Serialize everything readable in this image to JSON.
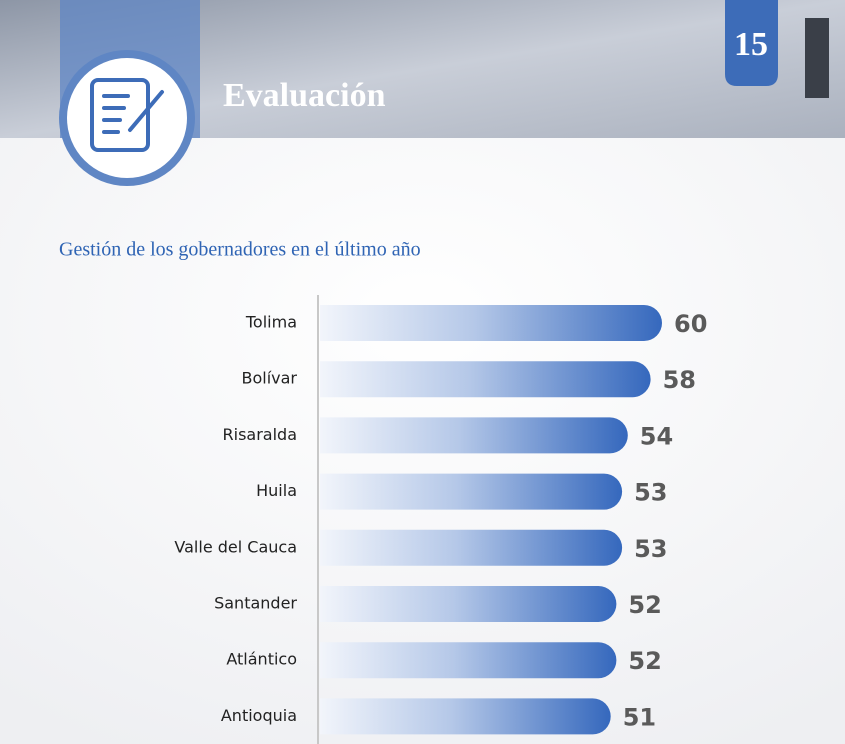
{
  "header": {
    "title": "Evaluación",
    "page_number": "15"
  },
  "chart_data": {
    "type": "bar",
    "orientation": "horizontal",
    "title": "Gestión de los gobernadores en el último año",
    "categories": [
      "Tolima",
      "Bolívar",
      "Risaralda",
      "Huila",
      "Valle del Cauca",
      "Santander",
      "Atlántico",
      "Antioquia"
    ],
    "values": [
      60,
      58,
      54,
      53,
      53,
      52,
      52,
      51
    ],
    "color": "#3d72c2"
  }
}
